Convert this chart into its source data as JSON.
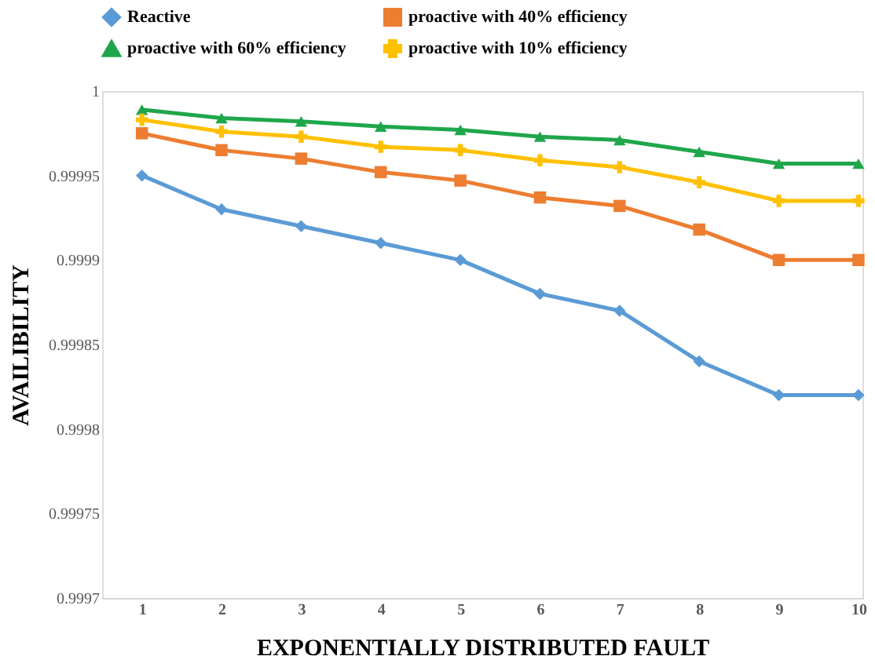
{
  "chart_data": {
    "type": "line",
    "xlabel": "EXPONENTIALLY DISTRIBUTED FAULT",
    "ylabel": "AVAILIBILITY",
    "categories": [
      "1",
      "2",
      "3",
      "4",
      "5",
      "6",
      "7",
      "8",
      "9",
      "10"
    ],
    "series": [
      {
        "name": "Reactive",
        "color": "#5b9bd5",
        "marker": "diamond",
        "values": [
          0.99995,
          0.99993,
          0.99992,
          0.99991,
          0.9999,
          0.99988,
          0.99987,
          0.99984,
          0.99982,
          0.99982
        ]
      },
      {
        "name": "proactive with 40% efficiency",
        "color": "#ed7d31",
        "marker": "square",
        "values": [
          0.999975,
          0.999965,
          0.99996,
          0.999952,
          0.999947,
          0.999937,
          0.999932,
          0.999918,
          0.9999,
          0.9999
        ]
      },
      {
        "name": "proactive with 60% efficiency",
        "color": "#1fa64b",
        "marker": "triangle",
        "values": [
          0.999989,
          0.999984,
          0.999982,
          0.999979,
          0.999977,
          0.999973,
          0.999971,
          0.999964,
          0.999957,
          0.999957
        ]
      },
      {
        "name": "proactive with 10% efficiency",
        "color": "#ffc000",
        "marker": "cross",
        "values": [
          0.999983,
          0.999976,
          0.999973,
          0.999967,
          0.999965,
          0.999959,
          0.999955,
          0.999946,
          0.999935,
          0.999935
        ]
      }
    ],
    "ylim": [
      0.9997,
      1.0
    ],
    "yticks": [
      0.9997,
      0.99975,
      0.9998,
      0.99985,
      0.9999,
      0.99995,
      1
    ],
    "grid": false,
    "legend": "top",
    "line_style": "solid"
  }
}
